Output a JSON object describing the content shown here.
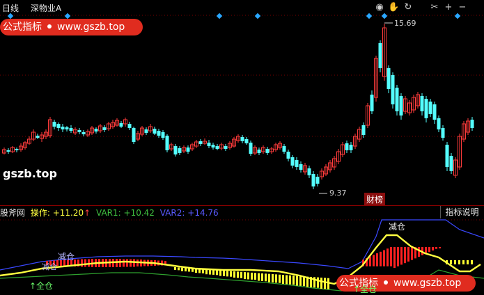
{
  "header": {
    "period": "日线",
    "stock_name": "深物业A"
  },
  "toolbar": {
    "icons": [
      "eye-icon",
      "hand-icon",
      "rotate-icon",
      "scissors-icon",
      "plus-icon",
      "minus-icon"
    ],
    "glyphs": [
      "◉",
      "✋",
      "↻",
      "✂",
      "+",
      "−"
    ]
  },
  "watermark": {
    "label": "公式指标",
    "url": "www.gszb.top",
    "site": "gszb.top"
  },
  "price_chart": {
    "high_label": "15.69",
    "low_label": "9.37",
    "news_tag": "财榜",
    "up_color": "#ff3b3b",
    "down_color": "#54ffff"
  },
  "indicator": {
    "name": "股斧网",
    "op_label": "操作:",
    "op_value": "+11.20",
    "op_arrow": "↑",
    "var1_label": "VAR1:",
    "var1_value": "+10.42",
    "var2_label": "VAR2:",
    "var2_value": "+14.76",
    "help_button": "指标说明",
    "reduce_label": "减仓",
    "full_label": "↑全仓",
    "op_color": "#ffff40",
    "var1_color": "#40c040",
    "var2_color": "#5a5aff"
  }
}
